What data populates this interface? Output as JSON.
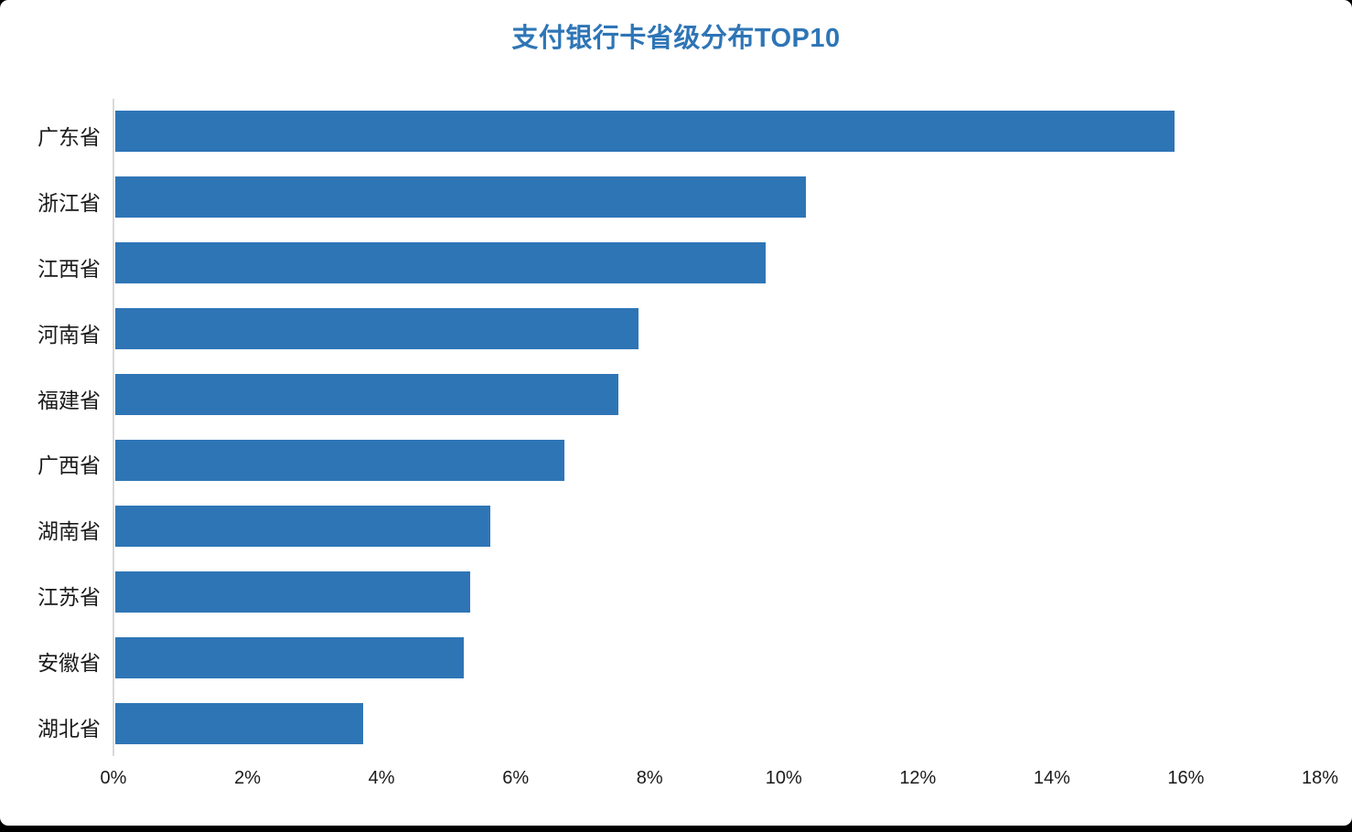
{
  "window": {
    "background": "#ffffff",
    "frame_color": "#000000"
  },
  "chart_data": {
    "type": "bar",
    "orientation": "horizontal",
    "title": "支付银行卡省级分布TOP10",
    "title_color": "#2E75B6",
    "bar_color": "#2E75B6",
    "axis_line_color": "#D9D9D9",
    "text_color": "#1a1a1a",
    "categories": [
      "广东省",
      "浙江省",
      "江西省",
      "河南省",
      "福建省",
      "广西省",
      "湖南省",
      "江苏省",
      "安徽省",
      "湖北省"
    ],
    "values": [
      15.8,
      10.3,
      9.7,
      7.8,
      7.5,
      6.7,
      5.6,
      5.3,
      5.2,
      3.7
    ],
    "value_unit": "%",
    "xlabel": "",
    "ylabel": "",
    "xlim": [
      0,
      18
    ],
    "x_tick_step": 2,
    "x_tick_labels": [
      "0%",
      "2%",
      "4%",
      "6%",
      "8%",
      "10%",
      "12%",
      "14%",
      "16%",
      "18%"
    ],
    "grid": false,
    "legend": false
  }
}
